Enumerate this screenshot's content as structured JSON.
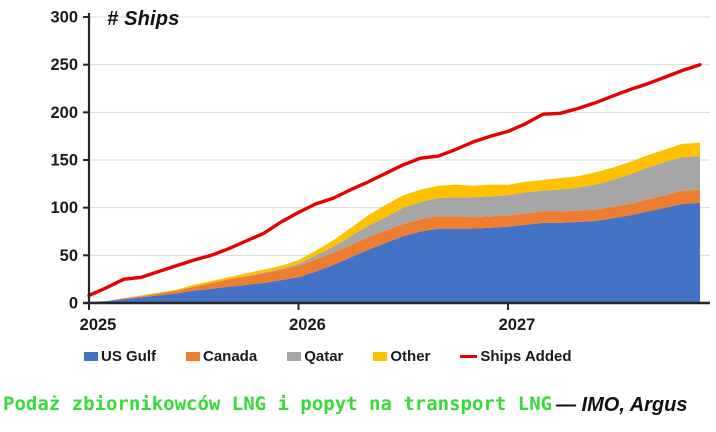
{
  "chart": {
    "title": "# Ships"
  },
  "caption": {
    "text": "Podaż zbiornikowców LNG i popyt na transport LNG",
    "text_color": "#35DC35",
    "source": "— IMO, Argus"
  },
  "legend": {
    "items": [
      {
        "label": "US Gulf",
        "color": "#4472C4",
        "type": "swatch"
      },
      {
        "label": "Canada",
        "color": "#ED7D31",
        "type": "swatch"
      },
      {
        "label": "Qatar",
        "color": "#A6A6A6",
        "type": "swatch"
      },
      {
        "label": "Other",
        "color": "#FFC000",
        "type": "swatch"
      },
      {
        "label": "Ships Added",
        "color": "#E60000",
        "type": "line"
      }
    ]
  },
  "colors": {
    "grid": "#D9D9D9",
    "axis": "#262626",
    "tick_label": "#1A1A1A"
  },
  "chart_data": {
    "type": "combo-stacked-area-line",
    "x_unit": "month",
    "x_range": "Jan 2025 – Dec 2027",
    "x_tick_labels": [
      "2025",
      "2026",
      "2027"
    ],
    "x_tick_month_index": [
      0,
      12,
      24
    ],
    "ylim": [
      0,
      300
    ],
    "y_ticks": [
      0,
      50,
      100,
      150,
      200,
      250,
      300
    ],
    "grid": "horizontal",
    "legend_position": "bottom",
    "stacked_series": [
      {
        "name": "US Gulf",
        "color": "#4472C4",
        "values": [
          1,
          2,
          4,
          6,
          8,
          10,
          13,
          15,
          17,
          19,
          21,
          24,
          27,
          33,
          40,
          48,
          56,
          63,
          70,
          75,
          78,
          78,
          78,
          79,
          80,
          82,
          84,
          84,
          85,
          86,
          89,
          92,
          96,
          100,
          104,
          105
        ]
      },
      {
        "name": "Canada",
        "color": "#ED7D31",
        "values": [
          0,
          0,
          1,
          1,
          2,
          3,
          4,
          6,
          8,
          9,
          10,
          11,
          12,
          13,
          13,
          13,
          13,
          13,
          13,
          13,
          13,
          13,
          12,
          12,
          12,
          12,
          12,
          12,
          12,
          12,
          12,
          12,
          13,
          13,
          14,
          14
        ]
      },
      {
        "name": "Qatar",
        "color": "#A6A6A6",
        "values": [
          0,
          0,
          0,
          0,
          0,
          0,
          0,
          0,
          0,
          0,
          1,
          1,
          2,
          4,
          6,
          9,
          12,
          14,
          17,
          18,
          19,
          20,
          21,
          21,
          21,
          22,
          22,
          23,
          24,
          26,
          28,
          31,
          33,
          35,
          35,
          35
        ]
      },
      {
        "name": "Other",
        "color": "#FFC000",
        "values": [
          0,
          0,
          0,
          1,
          1,
          1,
          2,
          2,
          2,
          3,
          3,
          3,
          4,
          5,
          7,
          9,
          11,
          13,
          13,
          13,
          13,
          13,
          12,
          12,
          11,
          11,
          11,
          12,
          12,
          13,
          13,
          13,
          13,
          13,
          14,
          14
        ]
      }
    ],
    "line_series": {
      "name": "Ships Added",
      "color": "#E60000",
      "values": [
        8,
        16,
        25,
        27,
        33,
        39,
        45,
        50,
        57,
        65,
        73,
        85,
        95,
        104,
        110,
        119,
        127,
        136,
        145,
        152,
        154,
        161,
        169,
        175,
        180,
        188,
        198,
        199,
        204,
        210,
        217,
        224,
        230,
        237,
        244,
        250
      ]
    }
  }
}
